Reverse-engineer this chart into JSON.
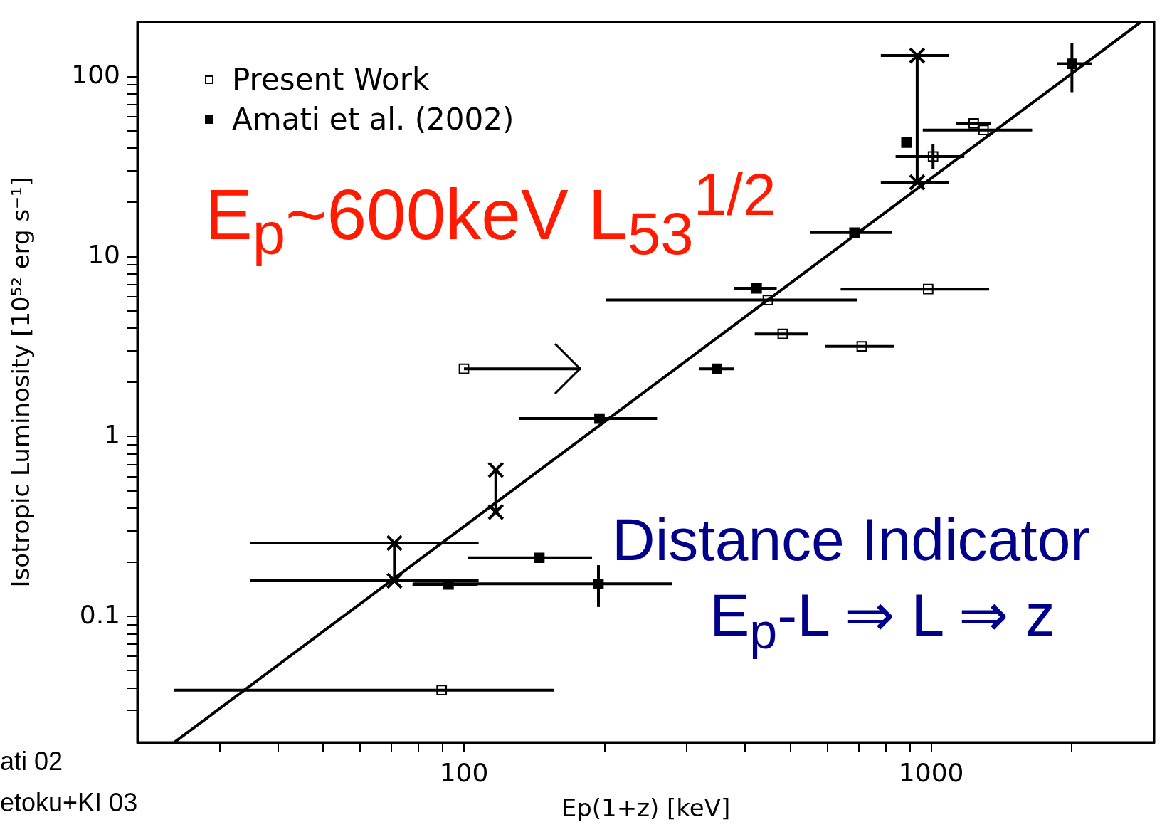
{
  "chart_data": {
    "type": "scatter",
    "xlabel": "Ep(1+z) [keV]",
    "ylabel": "Isotropic Luminosity [10⁵² erg s⁻¹]",
    "log": "xy",
    "xlim": [
      20,
      3000
    ],
    "ylim": [
      0.02,
      200
    ],
    "xticks": [
      {
        "value": 30,
        "label": null
      },
      {
        "value": 40,
        "label": null
      },
      {
        "value": 50,
        "label": null
      },
      {
        "value": 60,
        "label": null
      },
      {
        "value": 70,
        "label": null
      },
      {
        "value": 80,
        "label": null
      },
      {
        "value": 90,
        "label": null
      },
      100,
      {
        "value": 200,
        "label": null
      },
      {
        "value": 300,
        "label": null
      },
      {
        "value": 400,
        "label": null
      },
      {
        "value": 500,
        "label": null
      },
      {
        "value": 600,
        "label": null
      },
      {
        "value": 700,
        "label": null
      },
      {
        "value": 800,
        "label": null
      },
      {
        "value": 900,
        "label": null
      },
      1000,
      {
        "value": 2000,
        "label": null
      }
    ],
    "yticks": [
      {
        "value": 0.03,
        "label": null
      },
      {
        "value": 0.04,
        "label": null
      },
      {
        "value": 0.05,
        "label": null
      },
      {
        "value": 0.06,
        "label": null
      },
      {
        "value": 0.07,
        "label": null
      },
      {
        "value": 0.08,
        "label": null
      },
      {
        "value": 0.09,
        "label": null
      },
      0.1,
      {
        "value": 0.2,
        "label": null
      },
      {
        "value": 0.3,
        "label": null
      },
      {
        "value": 0.4,
        "label": null
      },
      {
        "value": 0.5,
        "label": null
      },
      {
        "value": 0.6,
        "label": null
      },
      {
        "value": 0.7,
        "label": null
      },
      {
        "value": 0.8,
        "label": null
      },
      {
        "value": 0.9,
        "label": null
      },
      1,
      {
        "value": 2,
        "label": null
      },
      {
        "value": 3,
        "label": null
      },
      {
        "value": 4,
        "label": null
      },
      {
        "value": 5,
        "label": null
      },
      {
        "value": 6,
        "label": null
      },
      {
        "value": 7,
        "label": null
      },
      {
        "value": 8,
        "label": null
      },
      {
        "value": 9,
        "label": null
      },
      10,
      {
        "value": 20,
        "label": null
      },
      {
        "value": 30,
        "label": null
      },
      {
        "value": 40,
        "label": null
      },
      {
        "value": 50,
        "label": null
      },
      {
        "value": 60,
        "label": null
      },
      {
        "value": 70,
        "label": null
      },
      {
        "value": 80,
        "label": null
      },
      {
        "value": 90,
        "label": null
      },
      100
    ],
    "legend": "top left",
    "annotations": [
      "E$_{p}$~600keV L$_{53}$$^{1/2}$",
      "Distance Indicator",
      "E$_{p}$-L ⇒ L ⇒ z",
      "ati 02",
      "etoku+KI 03"
    ],
    "series": [
      {
        "name": "Present Work",
        "marker": "square",
        "color": "#000000",
        "x": [
          100,
          89.6,
          447,
          481,
          710,
          985,
          1009,
          1233,
          1294
        ],
        "values": [
          2.38,
          0.039,
          5.74,
          3.72,
          3.17,
          6.6,
          36,
          55,
          50.5
        ],
        "xerrors": [
          [
            100,
            178
          ],
          [
            24,
            156
          ],
          [
            201,
            694
          ],
          [
            419,
            545
          ],
          [
            593,
            832
          ],
          [
            640,
            1330
          ],
          [
            839,
            1177
          ],
          [
            1130,
            1343
          ],
          [
            959,
            1644
          ]
        ],
        "errors": [
          null,
          null,
          null,
          null,
          null,
          null,
          [
            30.8,
            42
          ],
          null,
          null
        ]
      },
      {
        "name": "Amati et al. (2002)",
        "marker": "square",
        "color": "#000000",
        "x": [
          92.7,
          145,
          194,
          195,
          348,
          423,
          685,
          885,
          2000
        ],
        "values": [
          0.151,
          0.212,
          0.152,
          1.26,
          2.38,
          6.67,
          13.6,
          43,
          118
        ],
        "xerrors": [
          [
            77.6,
            107
          ],
          [
            102,
            188
          ],
          [
            78,
            279
          ],
          [
            131,
            259
          ],
          [
            319,
            378
          ],
          [
            378,
            467
          ],
          [
            550,
            824
          ],
          null,
          [
            1862,
            2203
          ]
        ],
        "errors": [
          null,
          null,
          [
            0.113,
            0.193
          ],
          null,
          null,
          null,
          null,
          null,
          [
            82,
            154
          ]
        ]
      },
      {
        "type": "line",
        "marker": "cross",
        "color": "#000000",
        "x": [
          71,
          71,
          null,
          117,
          117,
          null,
          933,
          933
        ],
        "values": [
          0.256,
          0.158,
          null,
          0.653,
          0.381,
          null,
          131,
          25.9
        ],
        "xerrors": [
          [
            34.9,
            107.5
          ],
          [
            34.9,
            107.5
          ],
          null,
          null,
          null,
          null,
          [
            780,
            1089
          ],
          [
            780,
            1089
          ]
        ]
      },
      {
        "type": "line",
        "marker": "none",
        "color": "#000000",
        "x": [
          24,
          2800
        ],
        "values": [
          0.02,
          200
        ]
      }
    ]
  }
}
